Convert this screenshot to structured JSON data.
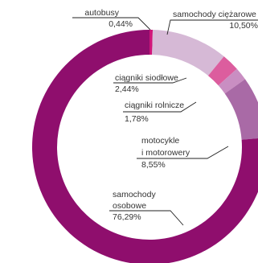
{
  "chart_data": {
    "type": "pie",
    "title": "",
    "start_angle_deg": 0,
    "slices": [
      {
        "label_lines": [
          "autobusy"
        ],
        "value_text": "0,44%",
        "value": 0.44,
        "color": "#d0157a"
      },
      {
        "label_lines": [
          "samochody ciężarowe"
        ],
        "value_text": "10,50%",
        "value": 10.5,
        "color": "#d6b9d6"
      },
      {
        "label_lines": [
          "ciągniki siodłowe"
        ],
        "value_text": "2,44%",
        "value": 2.44,
        "color": "#dc5d9e"
      },
      {
        "label_lines": [
          "ciągniki rolnicze"
        ],
        "value_text": "1,78%",
        "value": 1.78,
        "color": "#c98ec2"
      },
      {
        "label_lines": [
          "motocykle",
          "i motorowery"
        ],
        "value_text": "8,55%",
        "value": 8.55,
        "color": "#a96aa6"
      },
      {
        "label_lines": [
          "samochody",
          "osobowe"
        ],
        "value_text": "76,29%",
        "value": 76.29,
        "color": "#8f0e6d"
      }
    ]
  }
}
